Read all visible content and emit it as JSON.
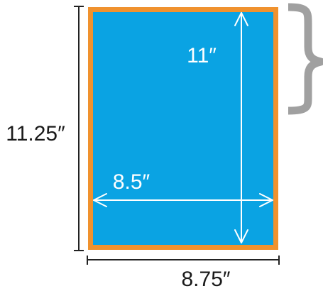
{
  "diagram": {
    "outer_height_label": "11.25″",
    "outer_width_label": "8.75″",
    "inner_height_label": "11″",
    "inner_width_label": "8.5″"
  },
  "colors": {
    "bleed_border": "#F0922E",
    "page_fill": "#0AA3E3",
    "arrow_white": "#FFFFFF",
    "dimension_line": "#222222",
    "label_text": "#1a1a1a",
    "brace_gray": "#A0A0A0"
  }
}
